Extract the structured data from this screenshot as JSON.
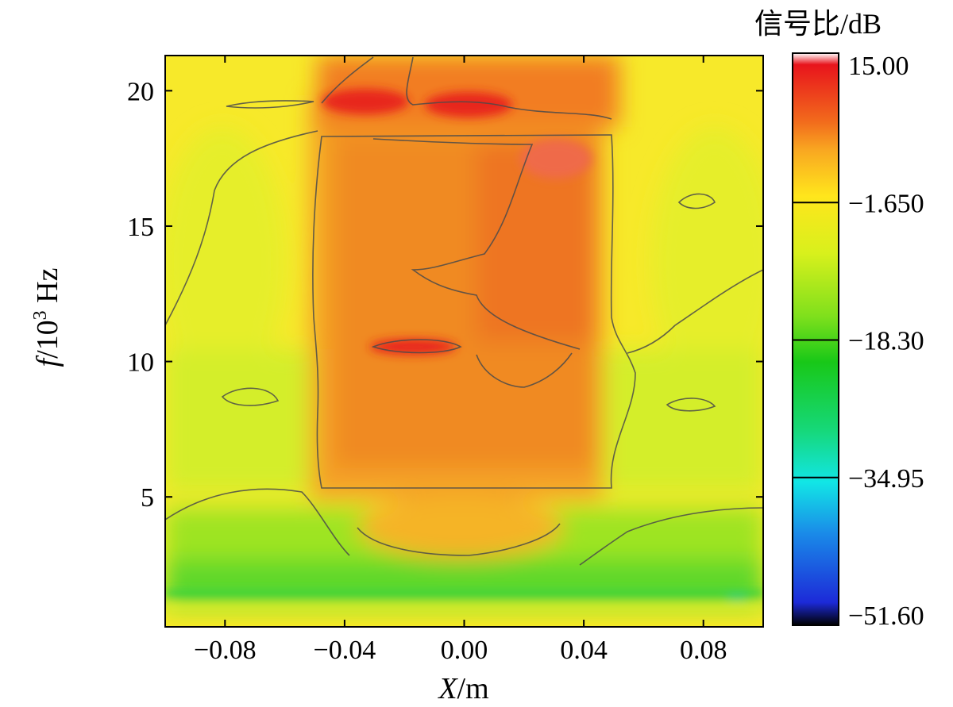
{
  "chart_data": {
    "type": "heatmap",
    "title": "",
    "xlabel_var": "X",
    "xlabel_unit": "m",
    "ylabel_var": "f",
    "ylabel_scale": "10",
    "ylabel_exp": "3",
    "ylabel_unit": "Hz",
    "xlim": [
      -0.1,
      0.1
    ],
    "ylim": [
      0.2,
      21.3
    ],
    "x_ticks": [
      -0.08,
      -0.04,
      0.0,
      0.04,
      0.08
    ],
    "x_tick_labels": [
      "−0.08",
      "−0.04",
      "0.00",
      "0.04",
      "0.08"
    ],
    "y_ticks": [
      5,
      10,
      15,
      20
    ],
    "y_tick_labels": [
      "5",
      "10",
      "15",
      "20"
    ],
    "colorbar": {
      "title": "信号比/dB",
      "min": -51.6,
      "max": 15.0,
      "ticks": [
        15.0,
        -1.65,
        -18.3,
        -34.95,
        -51.6
      ],
      "tick_labels": [
        "15.00",
        "−1.650",
        "−18.30",
        "−34.95",
        "−51.60"
      ],
      "colors": [
        "#ffffff",
        "#e8141c",
        "#f26b1c",
        "#f9a821",
        "#ffe61c",
        "#d8f01c",
        "#7fe01c",
        "#18c818",
        "#16d87a",
        "#12e6e6",
        "#1a8ae8",
        "#1c2ad8",
        "#000000"
      ]
    },
    "zones": [
      {
        "x": [
          -0.04,
          0.045
        ],
        "y": [
          4.5,
          19.5
        ],
        "value": 7.5,
        "level": "orange"
      },
      {
        "x": [
          0.005,
          0.045
        ],
        "y": [
          10.5,
          18.8
        ],
        "value": 10.5,
        "level": "red-orange"
      },
      {
        "x": [
          -0.035,
          0.01
        ],
        "y": [
          19.0,
          20.0
        ],
        "value": 14.0,
        "level": "red"
      },
      {
        "x": [
          -0.025,
          -0.005
        ],
        "y": [
          10.1,
          10.5
        ],
        "value": 13.5,
        "level": "red"
      },
      {
        "x": [
          -0.1,
          0.1
        ],
        "y": [
          5.0,
          21.3
        ],
        "value": -1.0,
        "level": "yellow"
      },
      {
        "x": [
          -0.1,
          0.1
        ],
        "y": [
          2.0,
          5.0
        ],
        "value": -8.0,
        "level": "yellow-green"
      },
      {
        "x": [
          -0.1,
          0.1
        ],
        "y": [
          0.2,
          2.0
        ],
        "value": -18.0,
        "level": "green"
      },
      {
        "x": [
          0.085,
          0.095
        ],
        "y": [
          1.0,
          1.3
        ],
        "value": -30.0,
        "level": "cyan"
      }
    ]
  }
}
